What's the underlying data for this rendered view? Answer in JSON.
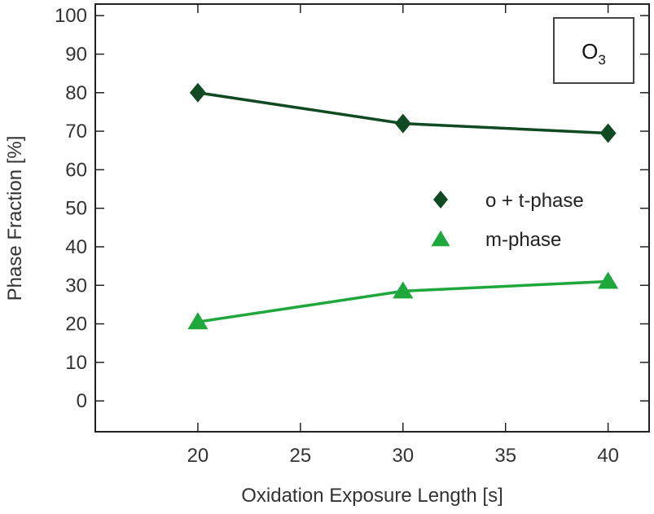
{
  "chart_data": {
    "type": "line",
    "xlabel": "Oxidation Exposure Length [s]",
    "ylabel": "Phase Fraction [%]",
    "xlim": [
      15,
      42
    ],
    "ylim": [
      -8,
      103
    ],
    "xticks": [
      20,
      25,
      30,
      35,
      40
    ],
    "yticks": [
      0,
      10,
      20,
      30,
      40,
      50,
      60,
      70,
      80,
      90,
      100
    ],
    "x": [
      20,
      30,
      40
    ],
    "series": [
      {
        "name": "o + t-phase",
        "values": [
          80,
          72,
          69.5
        ],
        "marker": "diamond",
        "color": "#0f4a22"
      },
      {
        "name": "m-phase",
        "values": [
          20.5,
          28.5,
          31
        ],
        "marker": "triangle",
        "color": "#1ea83c"
      }
    ],
    "annotation": {
      "text": "O",
      "subscript": "3"
    },
    "legend_position": "right-center",
    "grid": false
  }
}
